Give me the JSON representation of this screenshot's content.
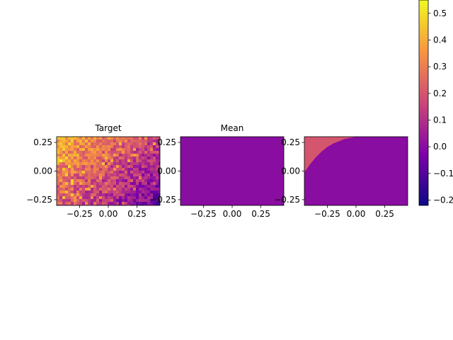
{
  "chart_data": [
    {
      "type": "heatmap",
      "title": "Target",
      "xlim": [
        -0.45,
        0.45
      ],
      "ylim": [
        -0.3,
        0.3
      ],
      "xticks": [
        "−0.25",
        "0.00",
        "0.25"
      ],
      "yticks": [
        "0.25",
        "0.00",
        "−0.25"
      ],
      "colormap": "plasma",
      "pattern": "noisy field, high values toward the top-left corner, decreasing toward the bottom-right"
    },
    {
      "type": "heatmap",
      "title": "Mean",
      "xlim": [
        -0.45,
        0.45
      ],
      "ylim": [
        -0.3,
        0.3
      ],
      "xticks": [
        "−0.25",
        "0.00",
        "0.25"
      ],
      "yticks": [
        "0.25",
        "0.00",
        "−0.25"
      ],
      "colormap": "plasma",
      "constant_value": 0.0
    },
    {
      "type": "heatmap",
      "title": "",
      "xlim": [
        -0.45,
        0.45
      ],
      "ylim": [
        -0.3,
        0.3
      ],
      "xticks": [
        "−0.25",
        "0.00",
        "0.25"
      ],
      "yticks": [
        "0.25",
        "0.00",
        "−0.25"
      ],
      "colormap": "plasma",
      "region_high_value": 0.2,
      "region_low_value": 0.0,
      "boundary": [
        [
          -0.45,
          -0.01
        ],
        [
          -0.4,
          0.06
        ],
        [
          -0.35,
          0.12
        ],
        [
          -0.3,
          0.17
        ],
        [
          -0.25,
          0.21
        ],
        [
          -0.2,
          0.24
        ],
        [
          -0.15,
          0.26
        ],
        [
          -0.1,
          0.28
        ],
        [
          -0.05,
          0.29
        ],
        [
          0.0,
          0.3
        ],
        [
          0.1,
          0.31
        ],
        [
          0.2,
          0.32
        ],
        [
          0.25,
          0.33
        ]
      ]
    }
  ],
  "colorbar": {
    "ticks": [
      "0.5",
      "0.4",
      "0.3",
      "0.2",
      "0.1",
      "0.0",
      "−0.1",
      "−0.2"
    ],
    "tick_values": [
      0.5,
      0.4,
      0.3,
      0.2,
      0.1,
      0.0,
      -0.1,
      -0.2
    ],
    "range": [
      -0.22,
      0.55
    ],
    "colormap": "plasma"
  }
}
